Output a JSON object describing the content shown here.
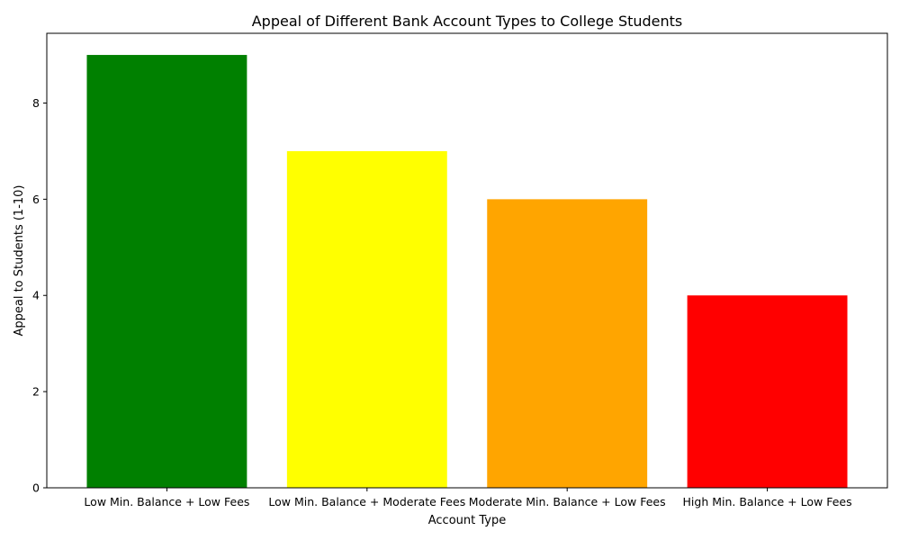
{
  "chart_data": {
    "type": "bar",
    "title": "Appeal of Different Bank Account Types to College Students",
    "xlabel": "Account Type",
    "ylabel": "Appeal to Students (1-10)",
    "categories": [
      "Low Min. Balance + Low Fees",
      "Low Min. Balance + Moderate Fees",
      "Moderate Min. Balance + Low Fees",
      "High Min. Balance + Low Fees"
    ],
    "values": [
      9,
      7,
      6,
      4
    ],
    "colors": [
      "#008000",
      "#ffff00",
      "#ffa500",
      "#ff0000"
    ],
    "ylim": [
      0,
      9.45
    ],
    "yticks": [
      0,
      2,
      4,
      6,
      8
    ],
    "grid": false,
    "legend": "none"
  }
}
